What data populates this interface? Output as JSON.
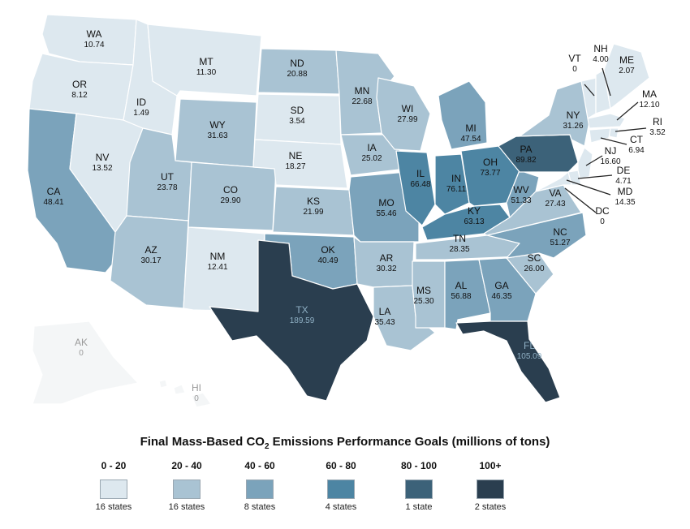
{
  "legend": {
    "title_pre": "Final Mass-Based CO",
    "title_sub": "2",
    "title_post": " Emissions Performance Goals (millions of tons)",
    "bins": [
      {
        "range": "0 - 20",
        "count": "16 states",
        "color": "#dde8ef"
      },
      {
        "range": "20 - 40",
        "count": "16 states",
        "color": "#a9c3d3"
      },
      {
        "range": "40 - 60",
        "count": "8 states",
        "color": "#7ba3bb"
      },
      {
        "range": "60 - 80",
        "count": "4 states",
        "color": "#4d85a3"
      },
      {
        "range": "80 - 100",
        "count": "1 state",
        "color": "#3c6279"
      },
      {
        "range": "100+",
        "count": "2 states",
        "color": "#2a3e4f"
      }
    ]
  },
  "states": [
    {
      "abbr": "WA",
      "value": "10.74"
    },
    {
      "abbr": "OR",
      "value": "8.12"
    },
    {
      "abbr": "CA",
      "value": "48.41"
    },
    {
      "abbr": "NV",
      "value": "13.52"
    },
    {
      "abbr": "ID",
      "value": "1.49"
    },
    {
      "abbr": "MT",
      "value": "11.30"
    },
    {
      "abbr": "WY",
      "value": "31.63"
    },
    {
      "abbr": "UT",
      "value": "23.78"
    },
    {
      "abbr": "AZ",
      "value": "30.17"
    },
    {
      "abbr": "CO",
      "value": "29.90"
    },
    {
      "abbr": "NM",
      "value": "12.41"
    },
    {
      "abbr": "ND",
      "value": "20.88"
    },
    {
      "abbr": "SD",
      "value": "3.54"
    },
    {
      "abbr": "NE",
      "value": "18.27"
    },
    {
      "abbr": "KS",
      "value": "21.99"
    },
    {
      "abbr": "OK",
      "value": "40.49"
    },
    {
      "abbr": "TX",
      "value": "189.59"
    },
    {
      "abbr": "MN",
      "value": "22.68"
    },
    {
      "abbr": "IA",
      "value": "25.02"
    },
    {
      "abbr": "MO",
      "value": "55.46"
    },
    {
      "abbr": "AR",
      "value": "30.32"
    },
    {
      "abbr": "LA",
      "value": "35.43"
    },
    {
      "abbr": "WI",
      "value": "27.99"
    },
    {
      "abbr": "IL",
      "value": "66.48"
    },
    {
      "abbr": "MI",
      "value": "47.54"
    },
    {
      "abbr": "IN",
      "value": "76.11"
    },
    {
      "abbr": "OH",
      "value": "73.77"
    },
    {
      "abbr": "KY",
      "value": "63.13"
    },
    {
      "abbr": "TN",
      "value": "28.35"
    },
    {
      "abbr": "MS",
      "value": "25.30"
    },
    {
      "abbr": "AL",
      "value": "56.88"
    },
    {
      "abbr": "GA",
      "value": "46.35"
    },
    {
      "abbr": "FL",
      "value": "105.09"
    },
    {
      "abbr": "SC",
      "value": "26.00"
    },
    {
      "abbr": "NC",
      "value": "51.27"
    },
    {
      "abbr": "VA",
      "value": "27.43"
    },
    {
      "abbr": "WV",
      "value": "51.33"
    },
    {
      "abbr": "PA",
      "value": "89.82"
    },
    {
      "abbr": "NY",
      "value": "31.26"
    },
    {
      "abbr": "VT",
      "value": "0"
    },
    {
      "abbr": "NH",
      "value": "4.00"
    },
    {
      "abbr": "ME",
      "value": "2.07"
    },
    {
      "abbr": "MA",
      "value": "12.10"
    },
    {
      "abbr": "RI",
      "value": "3.52"
    },
    {
      "abbr": "CT",
      "value": "6.94"
    },
    {
      "abbr": "NJ",
      "value": "16.60"
    },
    {
      "abbr": "DE",
      "value": "4.71"
    },
    {
      "abbr": "MD",
      "value": "14.35"
    },
    {
      "abbr": "DC",
      "value": "0"
    },
    {
      "abbr": "AK",
      "value": "0"
    },
    {
      "abbr": "HI",
      "value": "0"
    }
  ]
}
